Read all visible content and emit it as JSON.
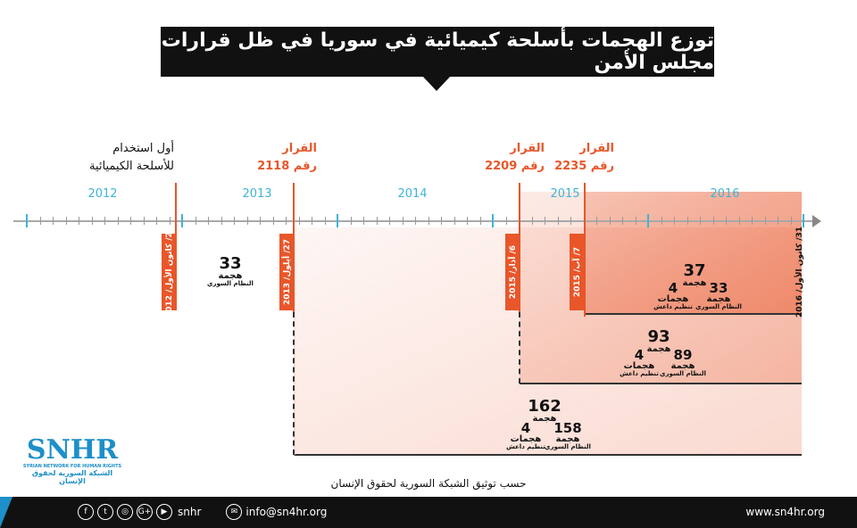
{
  "title": "توزع الهجمات بأسلحة كيميائية في سوريا في ظل قرارات مجلس الأمن",
  "years": [
    "2012",
    "2013",
    "2014",
    "2015",
    "2016"
  ],
  "events": [
    {
      "line1": "أول استخدام",
      "line2": "للأسلحة الكيميائية",
      "date": "23/ كانون الأول/ 2012"
    },
    {
      "line1": "القرار",
      "line2": "رقم 2118",
      "date": "27/ أيلول/ 2013"
    },
    {
      "line1": "القرار",
      "line2": "رقم 2209",
      "date": "6/ آذار/ 2015"
    },
    {
      "line1": "القرار",
      "line2": "رقم 2235",
      "date": "7/ آب/ 2015"
    }
  ],
  "end_date": "31/ كانون الأول/ 2016",
  "stats": {
    "pre": {
      "total": "33",
      "unit": "هجمة",
      "actor": "النظام السوري"
    },
    "r2235": {
      "total": "37",
      "unit": "هجمة",
      "isis": "4",
      "isis_unit": "هجمات",
      "isis_label": "تنظيم داعش",
      "regime": "33",
      "regime_unit": "هجمة",
      "regime_label": "النظام السوري"
    },
    "r2209": {
      "total": "93",
      "unit": "هجمة",
      "isis": "4",
      "isis_unit": "هجمات",
      "isis_label": "تنظيم داعش",
      "regime": "89",
      "regime_unit": "هجمة",
      "regime_label": "النظام السوري"
    },
    "r2118": {
      "total": "162",
      "unit": "هجمة",
      "isis": "4",
      "isis_unit": "هجمات",
      "isis_label": "تنظيم داعش",
      "regime": "158",
      "regime_unit": "هجمة",
      "regime_label": "النظام السوري"
    }
  },
  "source": "حسب توثيق الشبكة السورية لحقوق الإنسان",
  "logo": {
    "name": "SNHR",
    "en": "SYRIAN NETWORK FOR HUMAN RIGHTS",
    "ar": "الشبكة السورية لحقوق الإنسان"
  },
  "footer": {
    "social_handle": "snhr",
    "email": "info@sn4hr.org",
    "website": "www.sn4hr.org",
    "social_icons": [
      "facebook-icon",
      "twitter-icon",
      "instagram-icon",
      "google-plus-icon",
      "youtube-icon"
    ]
  },
  "colors": {
    "accent": "#e8562a",
    "year": "#3fb4d8",
    "footer": "#111111"
  }
}
